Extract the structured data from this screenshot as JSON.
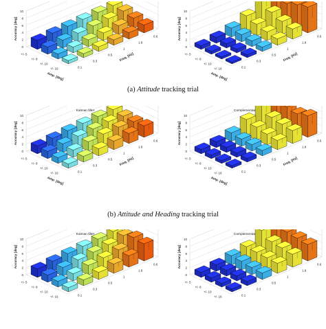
{
  "captions": {
    "a_label": "(a)",
    "a_italic": "Attitude",
    "a_rest": "tracking trial",
    "b_label": "(b)",
    "b_italic": "Attitude and Heading",
    "b_rest": "tracking trial"
  },
  "chart_data": [
    {
      "type": "bar3d",
      "panel": "a-left",
      "title": "",
      "zlabel": "Accuracy [deg]",
      "xlabel": "Amp. [deg]",
      "ylabel": "Freq. [Hz]",
      "amp_ticks": [
        "+/- 5",
        "+/- 8",
        "+/- 10",
        "+/- 16"
      ],
      "freq_ticks": [
        "0.1",
        "0.3",
        "0.5",
        "1",
        "1.8",
        "0.6"
      ],
      "z_ticks": [
        "0",
        "2",
        "4",
        "6",
        "8",
        "10"
      ],
      "zlim": [
        0,
        10
      ],
      "values": [
        [
          2.5,
          2.8,
          3.0,
          3.2,
          3.4,
          3.6
        ],
        [
          2.0,
          2.2,
          2.4,
          2.7,
          3.0,
          3.4
        ],
        [
          1.4,
          1.6,
          1.9,
          2.1,
          2.4,
          2.8
        ],
        [
          0.9,
          1.1,
          1.3,
          1.5,
          1.8,
          2.2
        ]
      ]
    },
    {
      "type": "bar3d",
      "panel": "a-right",
      "title": "",
      "zlabel": "Accuracy [deg]",
      "xlabel": "Amp. [deg]",
      "ylabel": "Freq. [Hz]",
      "amp_ticks": [
        "+/- 5",
        "+/- 8",
        "+/- 10",
        "+/- 16"
      ],
      "freq_ticks": [
        "0.1",
        "0.3",
        "0.5",
        "1",
        "1.8",
        "0.6"
      ],
      "z_ticks": [
        "0",
        "2",
        "4",
        "6",
        "8",
        "10"
      ],
      "zlim": [
        0,
        10
      ],
      "values": [
        [
          1.0,
          1.6,
          2.5,
          4.2,
          8.5,
          6.0
        ],
        [
          0.8,
          1.2,
          2.0,
          3.2,
          4.8,
          5.5
        ],
        [
          0.6,
          1.0,
          1.6,
          2.4,
          3.6,
          6.5
        ],
        [
          0.5,
          0.8,
          1.2,
          1.8,
          2.8,
          7.2
        ]
      ]
    },
    {
      "type": "bar3d",
      "panel": "b-left",
      "title": "Kalman filter",
      "zlabel": "Accuracy [deg]",
      "xlabel": "Amp. [deg]",
      "ylabel": "Freq. [Hz]",
      "amp_ticks": [
        "+/- 5",
        "+/- 8",
        "+/- 10",
        "+/- 16"
      ],
      "freq_ticks": [
        "0.1",
        "0.3",
        "0.5",
        "1",
        "1.8",
        "0.6"
      ],
      "z_ticks": [
        "0",
        "2",
        "4",
        "6",
        "8",
        "10"
      ],
      "zlim": [
        0,
        10
      ],
      "values": [
        [
          2.2,
          2.6,
          3.0,
          3.3,
          3.5,
          3.7
        ],
        [
          2.0,
          2.4,
          2.8,
          3.1,
          3.4,
          3.2
        ],
        [
          1.6,
          2.0,
          2.6,
          3.0,
          3.2,
          3.0
        ],
        [
          1.2,
          1.6,
          2.0,
          2.4,
          2.8,
          3.2
        ]
      ]
    },
    {
      "type": "bar3d",
      "panel": "b-right",
      "title": "Complementary filter",
      "zlabel": "Accuracy [deg]",
      "xlabel": "Amp. [deg]",
      "ylabel": "Freq. [Hz]",
      "amp_ticks": [
        "+/- 5",
        "+/- 8",
        "+/- 10",
        "+/- 16"
      ],
      "freq_ticks": [
        "0.1",
        "0.3",
        "0.5",
        "1",
        "1.8",
        "0.6"
      ],
      "z_ticks": [
        "0",
        "2",
        "4",
        "6",
        "8",
        "10"
      ],
      "zlim": [
        0,
        10
      ],
      "values": [
        [
          1.2,
          1.6,
          2.4,
          4.4,
          7.6,
          8.4
        ],
        [
          1.0,
          1.4,
          2.0,
          3.6,
          4.6,
          5.8
        ],
        [
          0.8,
          1.2,
          1.8,
          3.0,
          4.0,
          5.2
        ],
        [
          0.7,
          1.0,
          1.5,
          2.6,
          3.6,
          6.0
        ]
      ]
    },
    {
      "type": "bar3d",
      "panel": "c-left",
      "title": "Kalman filter",
      "zlabel": "Accuracy [deg]",
      "xlabel": "",
      "ylabel": "",
      "amp_ticks": [
        "+/- 5",
        "+/- 8",
        "+/- 10",
        "+/- 16"
      ],
      "freq_ticks": [
        "0.1",
        "0.3",
        "0.5",
        "1",
        "1.8",
        "0.6"
      ],
      "z_ticks": [
        "0",
        "2",
        "4",
        "6",
        "8",
        "10"
      ],
      "zlim": [
        0,
        10
      ],
      "values": [
        [
          2.4,
          2.8,
          3.2,
          3.5,
          3.8,
          4.2
        ],
        [
          2.0,
          2.4,
          2.8,
          3.2,
          3.6,
          4.4
        ],
        [
          1.6,
          2.0,
          2.6,
          3.0,
          3.5,
          5.2
        ],
        [
          1.2,
          1.6,
          2.0,
          2.6,
          3.2,
          4.8
        ]
      ]
    },
    {
      "type": "bar3d",
      "panel": "c-right",
      "title": "Complementary filter",
      "zlabel": "Accuracy [deg]",
      "xlabel": "",
      "ylabel": "",
      "amp_ticks": [
        "+/- 5",
        "+/- 8",
        "+/- 10",
        "+/- 16"
      ],
      "freq_ticks": [
        "0.1",
        "0.3",
        "0.5",
        "1",
        "1.8",
        "0.6"
      ],
      "z_ticks": [
        "0",
        "2",
        "4",
        "6",
        "8",
        "10"
      ],
      "zlim": [
        0,
        10
      ],
      "values": [
        [
          1.4,
          1.8,
          2.6,
          3.4,
          6.2,
          6.8
        ],
        [
          1.2,
          1.6,
          2.4,
          3.2,
          4.4,
          5.4
        ],
        [
          1.0,
          1.4,
          2.0,
          3.0,
          4.0,
          5.0
        ],
        [
          0.8,
          1.2,
          1.8,
          2.8,
          3.6,
          4.6
        ]
      ]
    }
  ]
}
